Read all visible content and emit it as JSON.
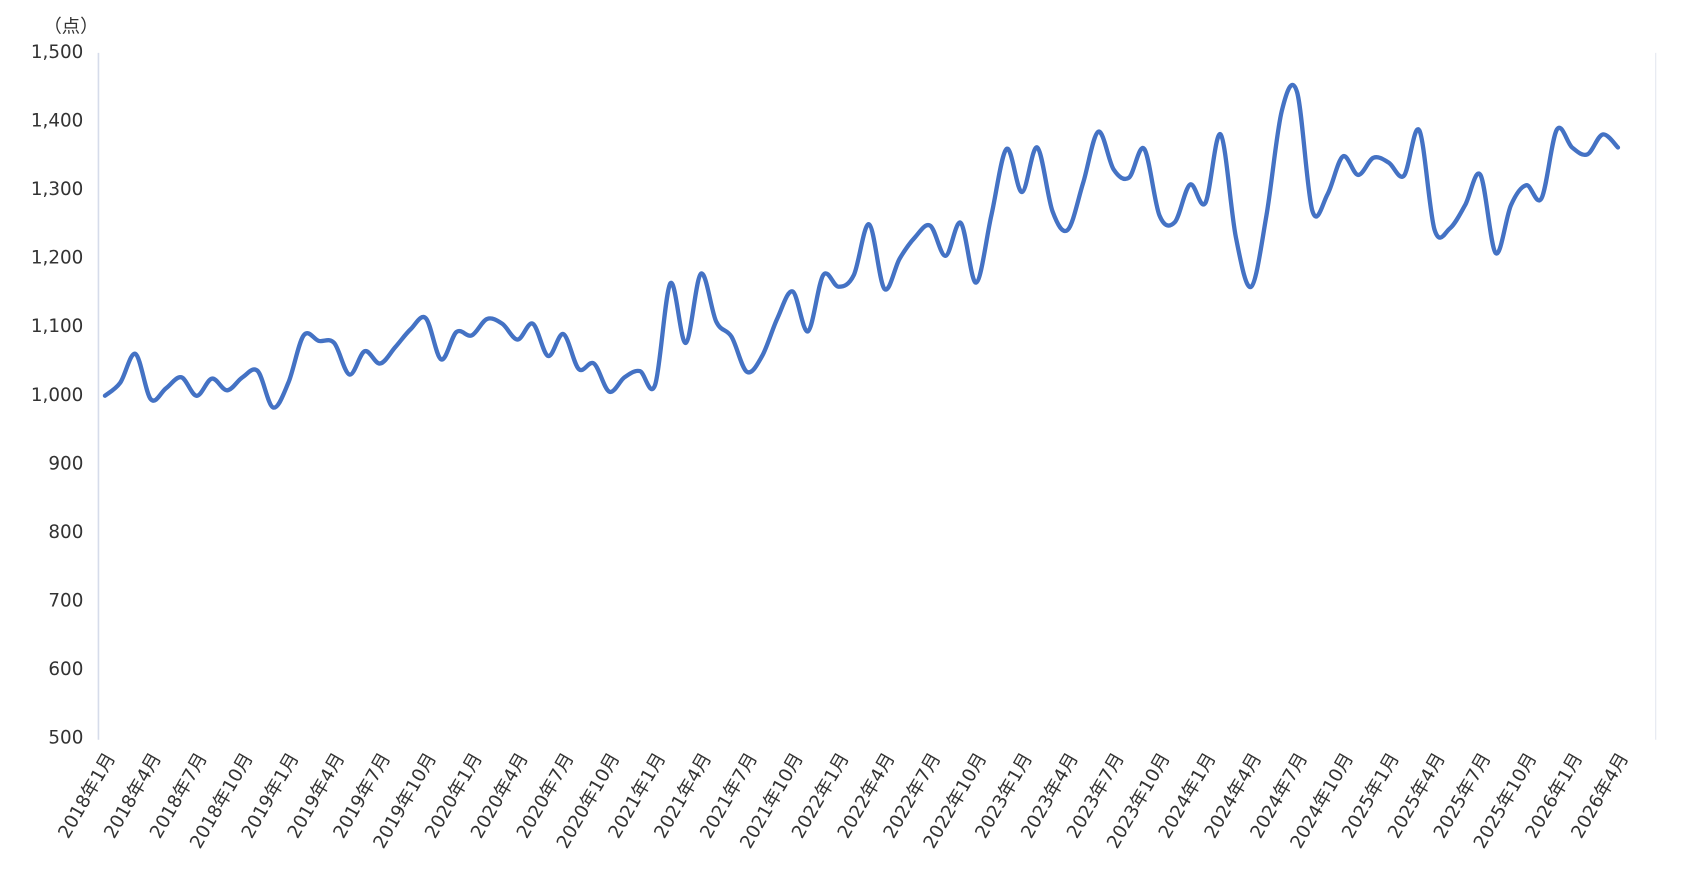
{
  "chart_data": {
    "type": "line",
    "y_label": "（点）",
    "categories": [
      "2018年1月",
      null,
      null,
      "2018年4月",
      null,
      null,
      "2018年7月",
      null,
      null,
      "2018年10月",
      null,
      null,
      "2019年1月",
      null,
      null,
      "2019年4月",
      null,
      null,
      "2019年7月",
      null,
      null,
      "2019年10月",
      null,
      null,
      "2020年1月",
      null,
      null,
      "2020年4月",
      null,
      null,
      "2020年7月",
      null,
      null,
      "2020年10月",
      null,
      null,
      "2021年1月",
      null,
      null,
      "2021年4月",
      null,
      null,
      "2021年7月",
      null,
      null,
      "2021年10月",
      null,
      null,
      "2022年1月",
      null,
      null,
      "2022年4月",
      null,
      null,
      "2022年7月",
      null,
      null,
      "2022年10月",
      null,
      null,
      "2023年1月",
      null,
      null,
      "2023年4月",
      null,
      null,
      "2023年7月",
      null,
      null,
      "2023年10月",
      null,
      null,
      "2024年1月",
      null,
      null,
      "2024年4月",
      null,
      null,
      "2024年7月",
      null,
      null,
      "2024年10月",
      null,
      null,
      "2025年1月",
      null,
      null,
      "2025年4月",
      null,
      null,
      "2025年7月",
      null,
      null,
      "2025年10月",
      null,
      null,
      "2026年1月",
      null,
      null,
      "2026年4月"
    ],
    "series": [
      {
        "color": "#4472c4",
        "values": [
          1000,
          1019,
          1061,
          995,
          1011,
          1027,
          1000,
          1025,
          1008,
          1027,
          1036,
          983,
          1019,
          1088,
          1080,
          1077,
          1031,
          1065,
          1047,
          1071,
          1097,
          1113,
          1053,
          1093,
          1088,
          1112,
          1105,
          1082,
          1105,
          1058,
          1090,
          1039,
          1047,
          1006,
          1027,
          1036,
          1016,
          1164,
          1077,
          1178,
          1108,
          1086,
          1035,
          1058,
          1113,
          1152,
          1094,
          1176,
          1159,
          1176,
          1250,
          1156,
          1200,
          1231,
          1248,
          1204,
          1252,
          1165,
          1263,
          1360,
          1297,
          1362,
          1269,
          1242,
          1310,
          1385,
          1330,
          1318,
          1360,
          1263,
          1253,
          1308,
          1281,
          1381,
          1231,
          1159,
          1263,
          1415,
          1443,
          1270,
          1294,
          1349,
          1322,
          1347,
          1340,
          1321,
          1387,
          1242,
          1244,
          1278,
          1322,
          1208,
          1278,
          1307,
          1288,
          1388,
          1362,
          1352,
          1381,
          1362
        ]
      }
    ],
    "ylim": [
      500,
      1500
    ],
    "yticks": [
      500,
      600,
      700,
      800,
      900,
      {
        "value": 1000,
        "label": "1,000"
      },
      {
        "value": 1100,
        "label": "1,100"
      },
      {
        "value": 1200,
        "label": "1,200"
      },
      {
        "value": 1300,
        "label": "1,300"
      },
      {
        "value": 1400,
        "label": "1,400"
      },
      {
        "value": 1500,
        "label": "1,500"
      }
    ],
    "grid": false
  }
}
